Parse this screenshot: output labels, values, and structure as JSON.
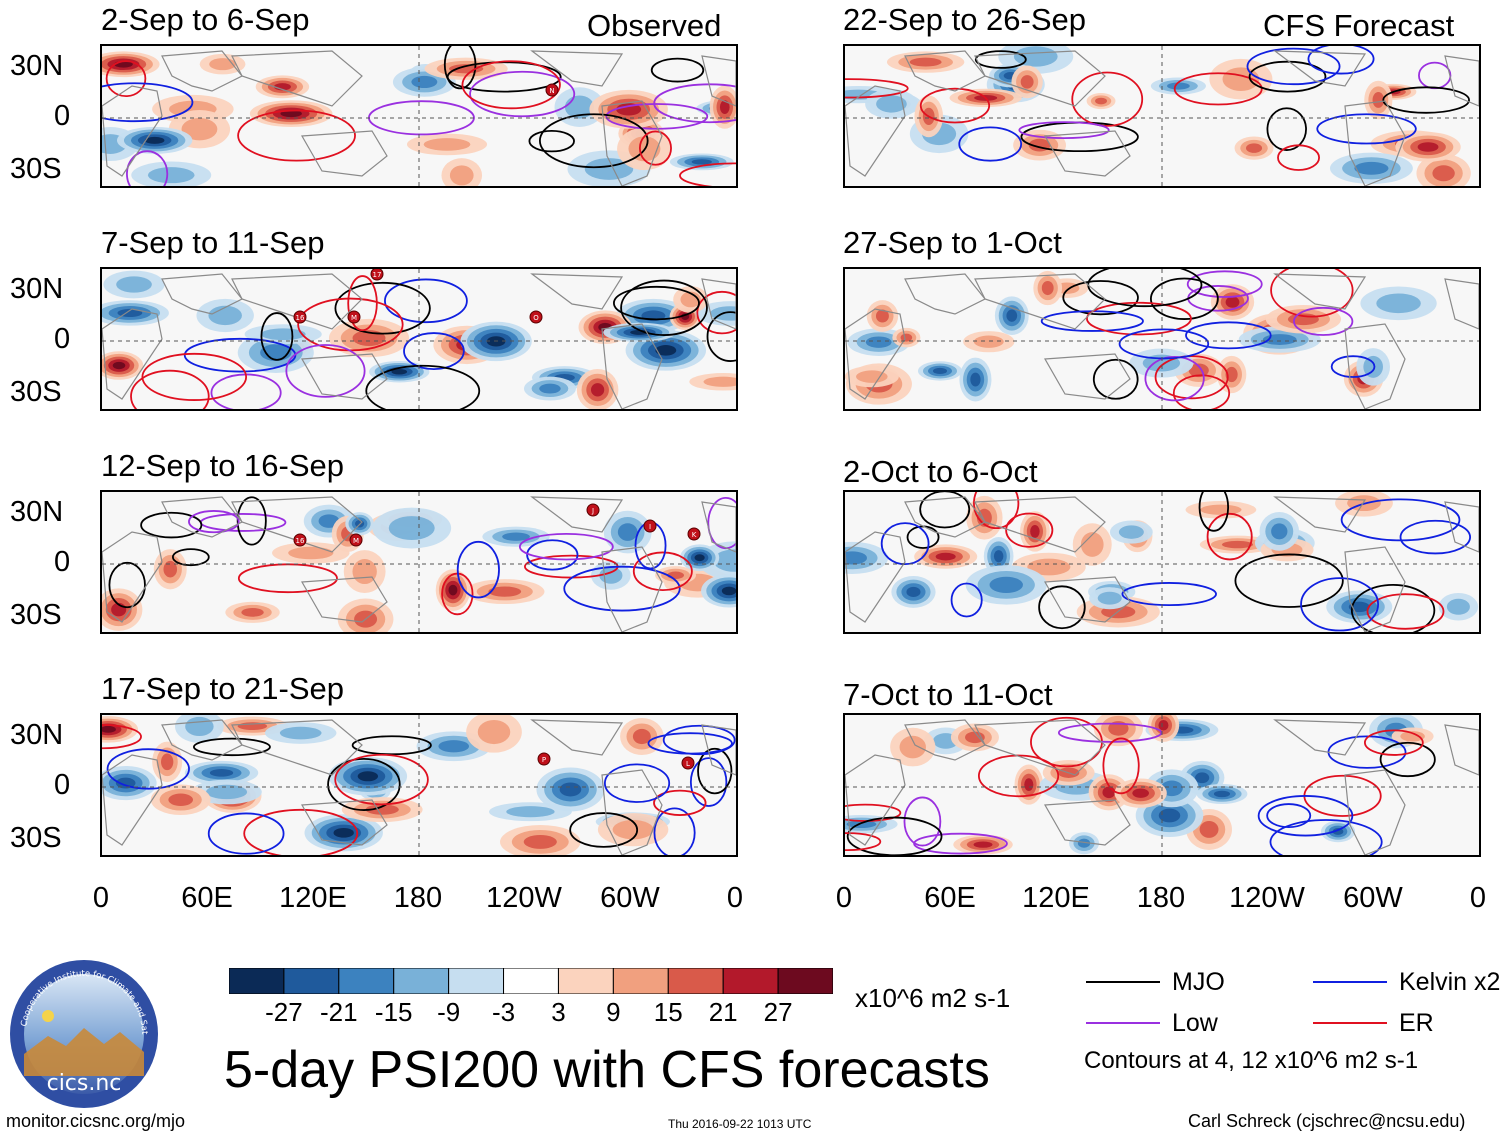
{
  "figure": {
    "title": "5-day PSI200 with CFS forecasts",
    "column_labels": {
      "left": "Observed",
      "right": "CFS Forecast"
    },
    "panels_left": [
      "2-Sep to 6-Sep",
      "7-Sep to 11-Sep",
      "12-Sep to 16-Sep",
      "17-Sep to 21-Sep"
    ],
    "panels_right": [
      "22-Sep to 26-Sep",
      "27-Sep to 1-Oct",
      "2-Oct to 6-Oct",
      "7-Oct to 11-Oct"
    ],
    "footer_left": "monitor.cicsnc.org/mjo",
    "footer_center": "Thu 2016-09-22 1013 UTC",
    "footer_right": "Carl Schreck (cjschrec@ncsu.edu)",
    "logo_text": "cics.nc",
    "logo_ring_text": "Cooperative Institute for Climate and Satellites"
  },
  "chart_data": {
    "type": "heatmap",
    "variable": "PSI200",
    "units": "x10^6 m2 s-1",
    "x_ticks": [
      "0",
      "60E",
      "120E",
      "180",
      "120W",
      "60W",
      "0"
    ],
    "y_ticks": [
      "30N",
      "0",
      "30S"
    ],
    "colorbar": {
      "labels": [
        "-27",
        "-21",
        "-15",
        "-9",
        "-3",
        "3",
        "9",
        "15",
        "21",
        "27"
      ],
      "colors": [
        "#0b2a56",
        "#1f5a9c",
        "#3c82bf",
        "#79b1d8",
        "#c6def0",
        "#ffffff",
        "#fbd3be",
        "#f1a07f",
        "#d95a4a",
        "#b3192b",
        "#6d0a1f"
      ]
    },
    "legend": [
      {
        "name": "MJO",
        "color": "#000000"
      },
      {
        "name": "Kelvin x2",
        "color": "#1020e0"
      },
      {
        "name": "Low",
        "color": "#9a30e0"
      },
      {
        "name": "ER",
        "color": "#e01020"
      }
    ],
    "contour_note": "Contours at 4, 12 x10^6 m2 s-1",
    "storm_markers": {
      "panel_1": [
        "N"
      ],
      "panel_2": [
        "17",
        "16",
        "M",
        "O"
      ],
      "panel_3": [
        "16",
        "M",
        "J",
        "I",
        "K"
      ],
      "panel_4": [
        "P",
        "L"
      ]
    }
  }
}
